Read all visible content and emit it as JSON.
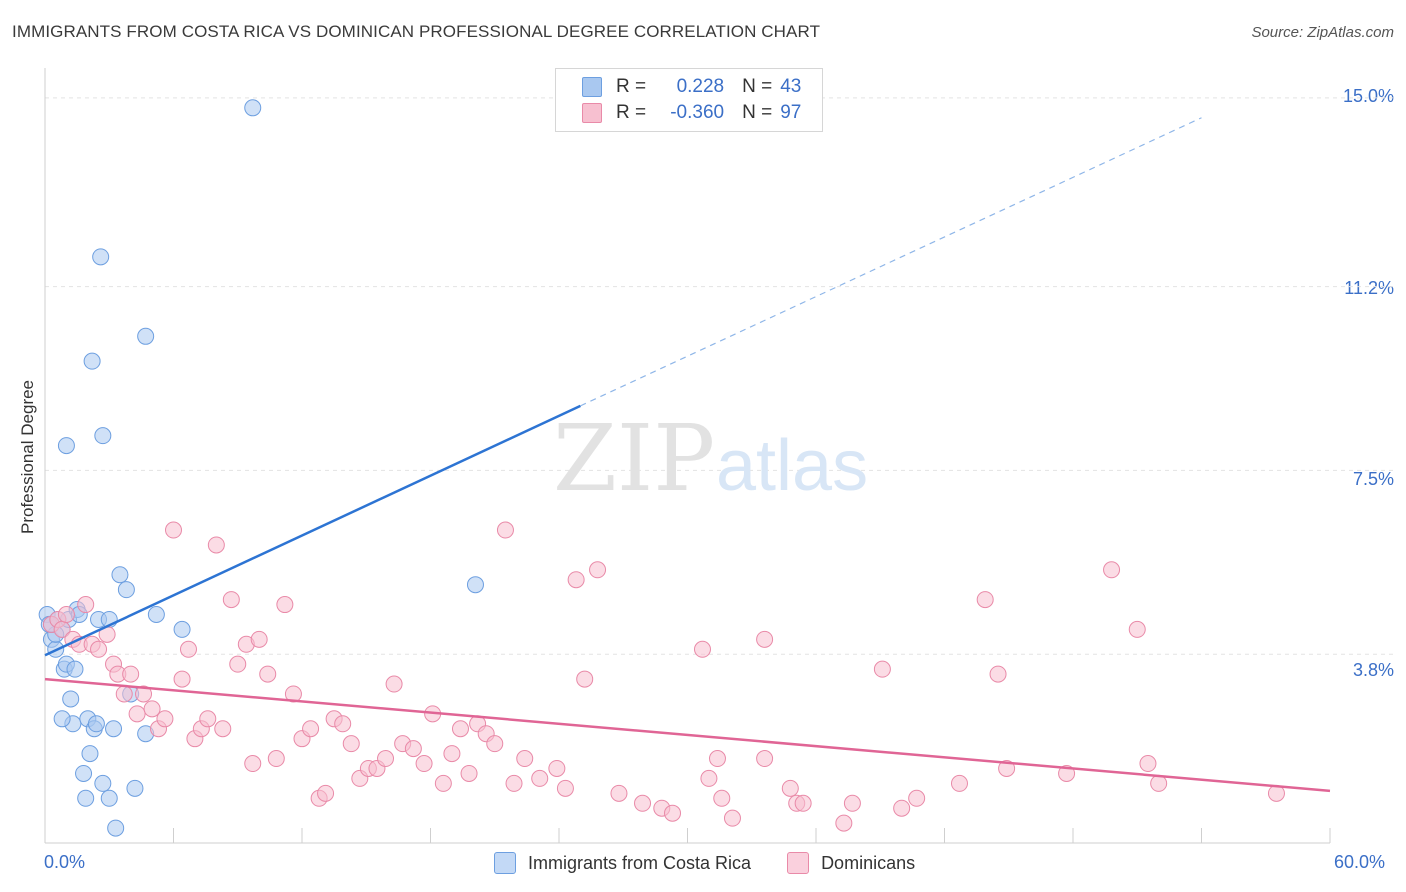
{
  "title": "IMMIGRANTS FROM COSTA RICA VS DOMINICAN PROFESSIONAL DEGREE CORRELATION CHART",
  "source": "Source: ZipAtlas.com",
  "legend": {
    "rows": [
      {
        "r_label": "R =",
        "r_value": "0.228",
        "n_label": "N =",
        "n_value": "43",
        "color": "#a9c8f0",
        "border": "#6d9fe0"
      },
      {
        "r_label": "R =",
        "r_value": "-0.360",
        "n_label": "N =",
        "n_value": "97",
        "color": "#f7c0d0",
        "border": "#e98aa8"
      }
    ]
  },
  "bottom_legend": [
    {
      "label": "Immigrants from Costa Rica",
      "color": "#c3d9f6",
      "border": "#6d9fe0"
    },
    {
      "label": "Dominicans",
      "color": "#fad0dd",
      "border": "#e98aa8"
    }
  ],
  "chart_data": {
    "type": "scatter",
    "title": "IMMIGRANTS FROM COSTA RICA VS DOMINICAN PROFESSIONAL DEGREE CORRELATION CHART",
    "xlabel": "",
    "ylabel": "Professional Degree",
    "xlim": [
      0,
      60
    ],
    "ylim": [
      0,
      15.4
    ],
    "x_tick_labels": [
      "0.0%",
      "60.0%"
    ],
    "y_ticks": [
      3.8,
      7.5,
      11.2,
      15.0
    ],
    "y_tick_labels": [
      "3.8%",
      "7.5%",
      "11.2%",
      "15.0%"
    ],
    "grid": "horizontal dashed",
    "watermark": "ZIPatlas",
    "series": [
      {
        "name": "Immigrants from Costa Rica",
        "color": "#a9c8f0",
        "stroke": "#6d9fe0",
        "trend_color": "#2d74d3",
        "trend": {
          "x1": 0,
          "y1": 3.78,
          "x2_solid": 25,
          "y2_solid": 8.8,
          "x2_dash": 54,
          "y2_dash": 14.6
        },
        "points": [
          [
            0.1,
            4.6
          ],
          [
            0.2,
            4.4
          ],
          [
            0.3,
            4.1
          ],
          [
            0.5,
            3.9
          ],
          [
            0.6,
            4.5
          ],
          [
            0.8,
            4.3
          ],
          [
            0.9,
            3.5
          ],
          [
            1.0,
            3.6
          ],
          [
            1.1,
            4.5
          ],
          [
            1.2,
            2.9
          ],
          [
            1.3,
            2.4
          ],
          [
            1.5,
            4.7
          ],
          [
            1.6,
            4.6
          ],
          [
            1.8,
            1.4
          ],
          [
            1.9,
            0.9
          ],
          [
            2.0,
            2.5
          ],
          [
            2.1,
            1.8
          ],
          [
            2.3,
            2.3
          ],
          [
            2.4,
            2.4
          ],
          [
            2.5,
            4.5
          ],
          [
            2.7,
            1.2
          ],
          [
            3.0,
            0.9
          ],
          [
            3.2,
            2.3
          ],
          [
            3.3,
            0.3
          ],
          [
            3.5,
            5.4
          ],
          [
            3.8,
            5.1
          ],
          [
            4.0,
            3.0
          ],
          [
            4.2,
            1.1
          ],
          [
            4.7,
            2.2
          ],
          [
            5.2,
            4.6
          ],
          [
            6.4,
            4.3
          ],
          [
            0.8,
            2.5
          ],
          [
            1.0,
            8.0
          ],
          [
            2.2,
            9.7
          ],
          [
            2.6,
            11.8
          ],
          [
            2.7,
            8.2
          ],
          [
            4.7,
            10.2
          ],
          [
            9.7,
            14.8
          ],
          [
            20.1,
            5.2
          ],
          [
            0.5,
            4.2
          ],
          [
            1.4,
            3.5
          ],
          [
            3.0,
            4.5
          ],
          [
            0.3,
            4.4
          ]
        ]
      },
      {
        "name": "Dominicans",
        "color": "#f7c0d0",
        "stroke": "#e98aa8",
        "trend_color": "#e06595",
        "trend": {
          "x1": 0,
          "y1": 3.3,
          "x2": 60,
          "y2": 1.05
        },
        "points": [
          [
            0.3,
            4.4
          ],
          [
            0.6,
            4.5
          ],
          [
            0.8,
            4.3
          ],
          [
            1.0,
            4.6
          ],
          [
            1.3,
            4.1
          ],
          [
            1.6,
            4.0
          ],
          [
            1.9,
            4.8
          ],
          [
            2.2,
            4.0
          ],
          [
            2.5,
            3.9
          ],
          [
            2.9,
            4.2
          ],
          [
            3.2,
            3.6
          ],
          [
            3.4,
            3.4
          ],
          [
            3.7,
            3.0
          ],
          [
            4.0,
            3.4
          ],
          [
            4.3,
            2.6
          ],
          [
            4.6,
            3.0
          ],
          [
            5.0,
            2.7
          ],
          [
            5.3,
            2.3
          ],
          [
            5.6,
            2.5
          ],
          [
            6.0,
            6.3
          ],
          [
            6.4,
            3.3
          ],
          [
            6.7,
            3.9
          ],
          [
            7.0,
            2.1
          ],
          [
            7.3,
            2.3
          ],
          [
            7.6,
            2.5
          ],
          [
            8.0,
            6.0
          ],
          [
            8.3,
            2.3
          ],
          [
            8.7,
            4.9
          ],
          [
            9.0,
            3.6
          ],
          [
            9.4,
            4.0
          ],
          [
            9.7,
            1.6
          ],
          [
            10.0,
            4.1
          ],
          [
            10.4,
            3.4
          ],
          [
            10.8,
            1.7
          ],
          [
            11.2,
            4.8
          ],
          [
            11.6,
            3.0
          ],
          [
            12.0,
            2.1
          ],
          [
            12.4,
            2.3
          ],
          [
            12.8,
            0.9
          ],
          [
            13.1,
            1.0
          ],
          [
            13.5,
            2.5
          ],
          [
            13.9,
            2.4
          ],
          [
            14.3,
            2.0
          ],
          [
            14.7,
            1.3
          ],
          [
            15.1,
            1.5
          ],
          [
            15.5,
            1.5
          ],
          [
            15.9,
            1.7
          ],
          [
            16.3,
            3.2
          ],
          [
            16.7,
            2.0
          ],
          [
            17.2,
            1.9
          ],
          [
            17.7,
            1.6
          ],
          [
            18.1,
            2.6
          ],
          [
            18.6,
            1.2
          ],
          [
            19.0,
            1.8
          ],
          [
            19.4,
            2.3
          ],
          [
            19.8,
            1.4
          ],
          [
            20.2,
            2.4
          ],
          [
            20.6,
            2.2
          ],
          [
            21.0,
            2.0
          ],
          [
            21.5,
            6.3
          ],
          [
            21.9,
            1.2
          ],
          [
            22.4,
            1.7
          ],
          [
            23.1,
            1.3
          ],
          [
            23.9,
            1.5
          ],
          [
            24.3,
            1.1
          ],
          [
            24.8,
            5.3
          ],
          [
            25.2,
            3.3
          ],
          [
            25.8,
            5.5
          ],
          [
            26.8,
            1.0
          ],
          [
            27.9,
            0.8
          ],
          [
            28.8,
            0.7
          ],
          [
            29.3,
            0.6
          ],
          [
            30.7,
            3.9
          ],
          [
            31.0,
            1.3
          ],
          [
            31.4,
            1.7
          ],
          [
            31.6,
            0.9
          ],
          [
            32.1,
            0.5
          ],
          [
            33.6,
            4.1
          ],
          [
            33.6,
            1.7
          ],
          [
            34.8,
            1.1
          ],
          [
            35.1,
            0.8
          ],
          [
            35.4,
            0.8
          ],
          [
            37.3,
            0.4
          ],
          [
            37.7,
            0.8
          ],
          [
            39.1,
            3.5
          ],
          [
            40.0,
            0.7
          ],
          [
            40.7,
            0.9
          ],
          [
            42.7,
            1.2
          ],
          [
            43.9,
            4.9
          ],
          [
            44.5,
            3.4
          ],
          [
            44.9,
            1.5
          ],
          [
            47.7,
            1.4
          ],
          [
            49.8,
            5.5
          ],
          [
            51.0,
            4.3
          ],
          [
            51.5,
            1.6
          ],
          [
            52.0,
            1.2
          ],
          [
            57.5,
            1.0
          ]
        ]
      }
    ]
  }
}
